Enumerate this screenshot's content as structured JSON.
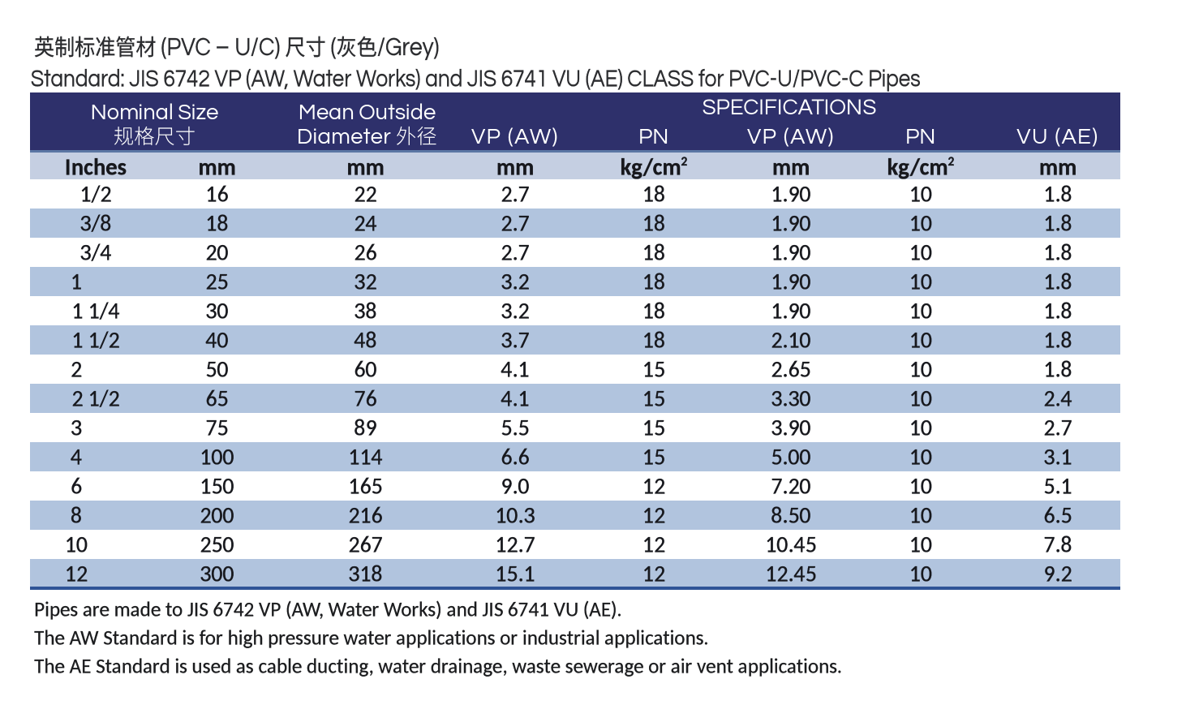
{
  "page": {
    "background": "#ffffff"
  },
  "title": {
    "line1": "英制标准管材 (PVC – U/C) 尺寸 (灰色/Grey)",
    "line2": "Standard: JIS 6742 VP (AW, Water Works) and JIS 6741 VU (AE) CLASS for PVC-U/PVC-C Pipes"
  },
  "table": {
    "header": {
      "nominal_size": {
        "en": "Nominal Size",
        "zh": "规格尺寸"
      },
      "mean_outside": {
        "line1": "Mean Outside",
        "line2": "Diameter 外径"
      },
      "specifications": {
        "title": "SPECIFICATIONS",
        "columns": [
          "VP (AW)",
          "PN",
          "VP (AW)",
          "PN",
          "VU (AE)"
        ]
      }
    },
    "units": [
      {
        "text": "Inches",
        "sup": ""
      },
      {
        "text": "mm",
        "sup": ""
      },
      {
        "text": "mm",
        "sup": ""
      },
      {
        "text": "mm",
        "sup": ""
      },
      {
        "text": "kg/cm",
        "sup": "2"
      },
      {
        "text": "mm",
        "sup": ""
      },
      {
        "text": "kg/cm",
        "sup": "2"
      },
      {
        "text": "mm",
        "sup": ""
      }
    ],
    "rows": [
      [
        "1/2",
        "16",
        "22",
        "2.7",
        "18",
        "1.90",
        "10",
        "1.8"
      ],
      [
        "3/8",
        "18",
        "24",
        "2.7",
        "18",
        "1.90",
        "10",
        "1.8"
      ],
      [
        "3/4",
        "20",
        "26",
        "2.7",
        "18",
        "1.90",
        "10",
        "1.8"
      ],
      [
        "1",
        "25",
        "32",
        "3.2",
        "18",
        "1.90",
        "10",
        "1.8"
      ],
      [
        "1 1/4",
        "30",
        "38",
        "3.2",
        "18",
        "1.90",
        "10",
        "1.8"
      ],
      [
        "1 1/2",
        "40",
        "48",
        "3.7",
        "18",
        "2.10",
        "10",
        "1.8"
      ],
      [
        "2",
        "50",
        "60",
        "4.1",
        "15",
        "2.65",
        "10",
        "1.8"
      ],
      [
        "2 1/2",
        "65",
        "76",
        "4.1",
        "15",
        "3.30",
        "10",
        "2.4"
      ],
      [
        "3",
        "75",
        "89",
        "5.5",
        "15",
        "3.90",
        "10",
        "2.7"
      ],
      [
        "4",
        "100",
        "114",
        "6.6",
        "15",
        "5.00",
        "10",
        "3.1"
      ],
      [
        "6",
        "150",
        "165",
        "9.0",
        "12",
        "7.20",
        "10",
        "5.1"
      ],
      [
        "8",
        "200",
        "216",
        "10.3",
        "12",
        "8.50",
        "10",
        "6.5"
      ],
      [
        "10",
        "250",
        "267",
        "12.7",
        "12",
        "10.45",
        "10",
        "7.8"
      ],
      [
        "12",
        "300",
        "318",
        "15.1",
        "12",
        "12.45",
        "10",
        "9.2"
      ]
    ],
    "colors": {
      "header_navy": "#2E306B",
      "header_separator": "#5B76A4",
      "units_band": "#C5CFE2",
      "row_stripe": "#B1C4DE",
      "bottom_border": "#2F5496",
      "header_text": "#FFFFFF",
      "body_text": "#17181D"
    }
  },
  "notes": [
    "Pipes are made to JIS 6742 VP (AW, Water Works) and JIS 6741 VU (AE).",
    "The AW Standard is for high pressure water applications or industrial applications.",
    "The AE Standard is used as cable ducting, water drainage, waste sewerage or air vent applications."
  ]
}
